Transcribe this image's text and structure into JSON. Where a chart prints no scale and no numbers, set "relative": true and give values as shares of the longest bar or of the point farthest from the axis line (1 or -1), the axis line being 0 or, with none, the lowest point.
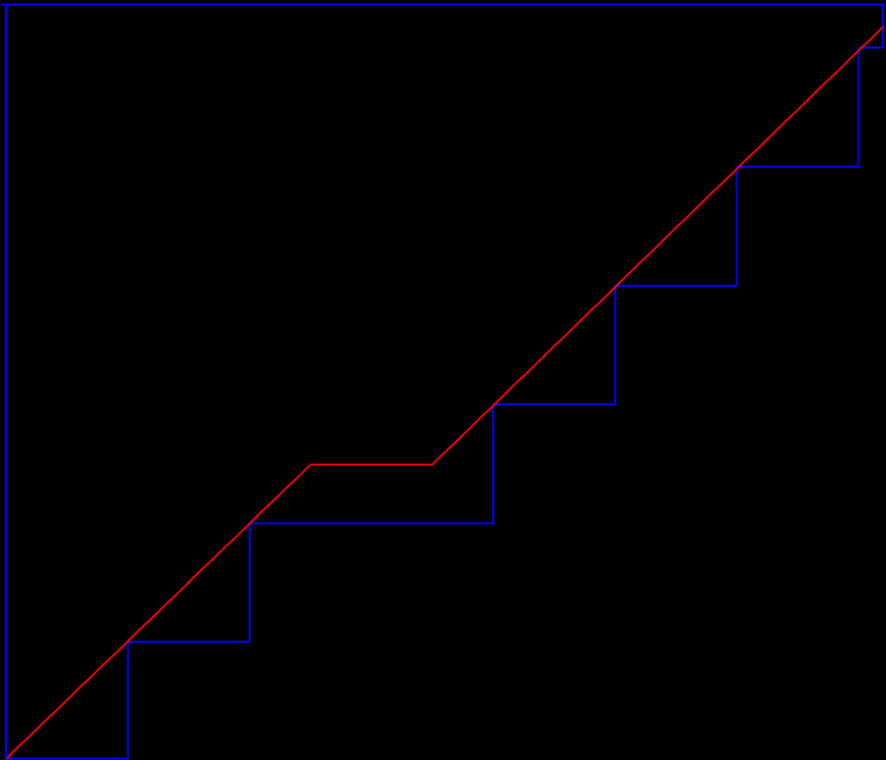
{
  "chart_data": {
    "type": "line",
    "relative": true,
    "categories": [
      null,
      null,
      null,
      null,
      null,
      null,
      null,
      null,
      null,
      null,
      null,
      null,
      null,
      null,
      null,
      null,
      null,
      null,
      null,
      null,
      null,
      null,
      null,
      null,
      null,
      null,
      null,
      null,
      null,
      null,
      null,
      null,
      null,
      null,
      null,
      null,
      null,
      null,
      null,
      null,
      null,
      null,
      null,
      null,
      null,
      null,
      null,
      null,
      null,
      null,
      null,
      null,
      null,
      null,
      null,
      null,
      null,
      null,
      null,
      null,
      null,
      null,
      null,
      null,
      null,
      null,
      null,
      null,
      null,
      null,
      null,
      null,
      null
    ],
    "series": [
      {
        "type": "step",
        "color": "#0000ff",
        "values": [
          0,
          0,
          0,
          0,
          0,
          0,
          0,
          0,
          0,
          0,
          0.155,
          0.155,
          0.155,
          0.155,
          0.155,
          0.155,
          0.155,
          0.155,
          0.155,
          0.155,
          0.312,
          0.312,
          0.312,
          0.312,
          0.312,
          0.312,
          0.312,
          0.312,
          0.312,
          0.312,
          0.312,
          0.312,
          0.312,
          0.312,
          0.312,
          0.312,
          0.312,
          0.312,
          0.312,
          0.312,
          0.47,
          0.47,
          0.47,
          0.47,
          0.47,
          0.47,
          0.47,
          0.47,
          0.47,
          0.47,
          0.627,
          0.627,
          0.627,
          0.627,
          0.627,
          0.627,
          0.627,
          0.627,
          0.627,
          0.627,
          0.785,
          0.785,
          0.785,
          0.785,
          0.785,
          0.785,
          0.785,
          0.785,
          0.785,
          0.785,
          0.943,
          0.943,
          1
        ]
      },
      {
        "color": "#ff0000",
        "values": [
          0,
          0.016,
          0.031,
          0.047,
          0.062,
          0.078,
          0.094,
          0.109,
          0.125,
          0.14,
          0.156,
          0.172,
          0.187,
          0.203,
          0.218,
          0.234,
          0.25,
          0.265,
          0.281,
          0.296,
          0.312,
          0.328,
          0.343,
          0.359,
          0.374,
          0.39,
          0.39,
          0.39,
          0.39,
          0.39,
          0.39,
          0.39,
          0.39,
          0.39,
          0.39,
          0.39,
          0.406,
          0.421,
          0.437,
          0.453,
          0.468,
          0.484,
          0.5,
          0.515,
          0.531,
          0.547,
          0.562,
          0.578,
          0.594,
          0.609,
          0.625,
          0.641,
          0.657,
          0.672,
          0.688,
          0.704,
          0.719,
          0.735,
          0.751,
          0.766,
          0.782,
          0.798,
          0.813,
          0.829,
          0.845,
          0.86,
          0.876,
          0.892,
          0.907,
          0.923,
          0.939,
          0.954,
          0.97
        ]
      }
    ],
    "ref_lines": [
      {
        "axis": "y",
        "value": 1,
        "color": "#0000ff"
      },
      {
        "axis": "x",
        "value": null,
        "color": "#0000ff"
      }
    ]
  }
}
